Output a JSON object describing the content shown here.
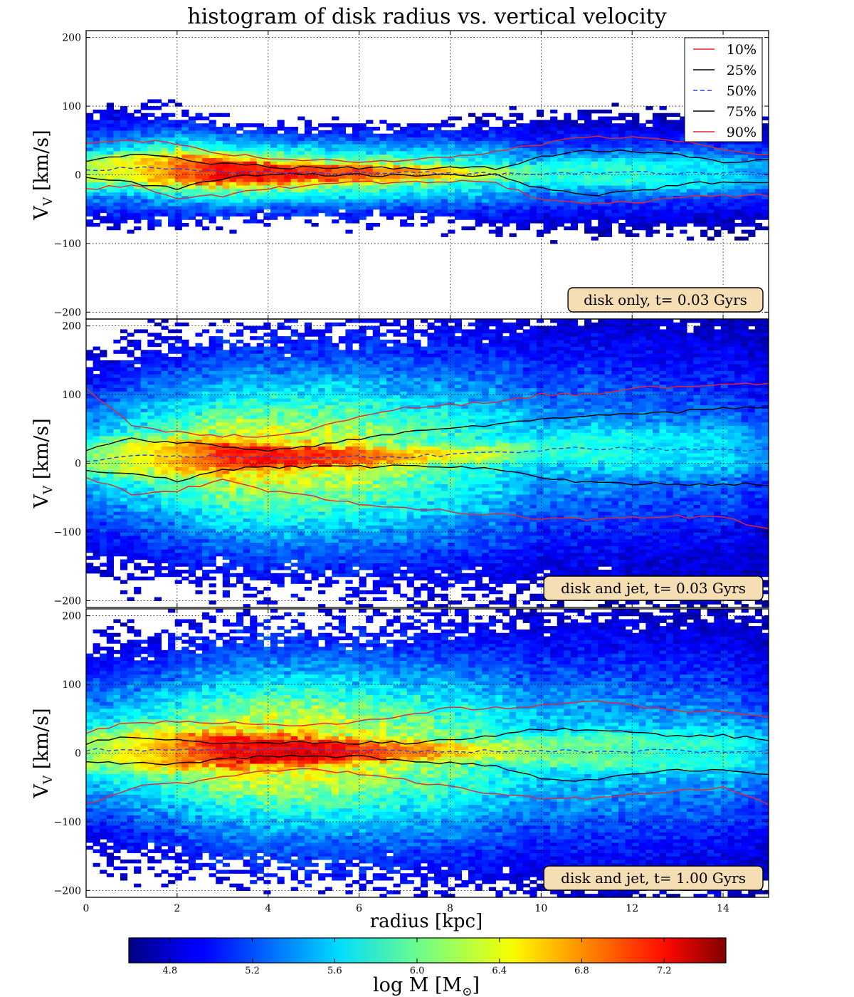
{
  "chart_data": {
    "type": "heatmap",
    "title": "histogram of disk radius vs. vertical velocity",
    "xlabel": "radius [kpc]",
    "ylabel": "V_V [km/s]",
    "ylabel_main": "V",
    "ylabel_sub": "V",
    "ylabel_units": " [km/s]",
    "xlim": [
      0,
      15
    ],
    "ylim": [
      -210,
      210
    ],
    "x_ticks": [
      0,
      2,
      4,
      6,
      8,
      10,
      12,
      14
    ],
    "x_tick_labels": [
      "0",
      "2",
      "4",
      "6",
      "8",
      "10",
      "12",
      "14"
    ],
    "y_ticks": [
      -200,
      -100,
      0,
      100,
      200
    ],
    "y_tick_labels": [
      "−200",
      "−100",
      "0",
      "100",
      "200"
    ],
    "grid": true,
    "legend_placement": "top-right",
    "legend": [
      {
        "label": "10%",
        "color": "#e8262c",
        "style": "solid"
      },
      {
        "label": "25%",
        "color": "#000000",
        "style": "solid"
      },
      {
        "label": "50%",
        "color": "#2b3ff0",
        "style": "dashed"
      },
      {
        "label": "75%",
        "color": "#000000",
        "style": "solid"
      },
      {
        "label": "90%",
        "color": "#e8262c",
        "style": "solid"
      }
    ],
    "colorbar": {
      "label": "log M [M⊙]",
      "label_main": "log M [M",
      "label_sub": "⊙",
      "label_end": "]",
      "range": [
        4.6,
        7.5
      ],
      "ticks": [
        4.8,
        5.2,
        5.6,
        6.0,
        6.4,
        6.8,
        7.2
      ],
      "tick_labels": [
        "4.8",
        "5.2",
        "5.6",
        "6.0",
        "6.4",
        "6.8",
        "7.2"
      ],
      "colormap": "jet"
    },
    "radius_grid": [
      0,
      1,
      2,
      3,
      4,
      5,
      6,
      7,
      8,
      9,
      10,
      11,
      12,
      13,
      14,
      15
    ],
    "panels": [
      {
        "label": "disk only, t= 0.03 Gyrs",
        "has_legend": true,
        "core_sigma": [
          13,
          14,
          15,
          12,
          10,
          8,
          7,
          6,
          5,
          5,
          10,
          13,
          14,
          15,
          16,
          16
        ],
        "wing_sigma": [
          28,
          30,
          30,
          26,
          24,
          24,
          24,
          24,
          26,
          28,
          30,
          30,
          30,
          30,
          30,
          30
        ],
        "peak_logM": [
          6.2,
          6.4,
          6.8,
          7.1,
          7.1,
          7.0,
          6.9,
          6.7,
          6.5,
          6.2,
          5.8,
          5.8,
          5.8,
          5.7,
          5.6,
          5.4
        ],
        "percentiles": [
          {
            "name": "10%",
            "values": [
              -20,
              -15,
              -35,
              -30,
              -20,
              -15,
              -12,
              -10,
              -10,
              -12,
              -35,
              -40,
              -40,
              -35,
              -30,
              -30
            ]
          },
          {
            "name": "25%",
            "values": [
              -5,
              -12,
              -20,
              -5,
              0,
              0,
              0,
              0,
              0,
              0,
              -20,
              -30,
              -25,
              -15,
              -10,
              -10
            ]
          },
          {
            "name": "50%",
            "values": [
              5,
              10,
              8,
              5,
              3,
              3,
              3,
              3,
              2,
              2,
              2,
              3,
              3,
              3,
              3,
              3
            ]
          },
          {
            "name": "75%",
            "values": [
              20,
              30,
              25,
              15,
              12,
              10,
              10,
              10,
              10,
              10,
              25,
              35,
              35,
              30,
              20,
              20
            ]
          },
          {
            "name": "90%",
            "values": [
              45,
              50,
              45,
              30,
              25,
              22,
              20,
              20,
              25,
              35,
              45,
              55,
              55,
              50,
              35,
              30
            ]
          }
        ]
      },
      {
        "label": "disk and jet, t= 0.03 Gyrs",
        "has_legend": false,
        "core_sigma": [
          15,
          16,
          16,
          13,
          10,
          9,
          8,
          7,
          6,
          7,
          12,
          16,
          18,
          20,
          22,
          22
        ],
        "wing_sigma": [
          55,
          60,
          62,
          64,
          65,
          66,
          68,
          70,
          72,
          74,
          76,
          78,
          78,
          78,
          78,
          76
        ],
        "peak_logM": [
          6.0,
          6.3,
          6.6,
          7.0,
          7.1,
          7.0,
          6.9,
          6.6,
          6.4,
          6.2,
          5.8,
          5.8,
          5.7,
          5.6,
          5.6,
          5.3
        ],
        "percentiles": [
          {
            "name": "10%",
            "values": [
              -20,
              -45,
              -40,
              -25,
              -40,
              -50,
              -60,
              -65,
              -70,
              -75,
              -80,
              -82,
              -80,
              -78,
              -80,
              -95
            ]
          },
          {
            "name": "25%",
            "values": [
              -10,
              -15,
              -25,
              -10,
              -5,
              -5,
              -5,
              -5,
              -5,
              -8,
              -20,
              -28,
              -30,
              -30,
              -30,
              -30
            ]
          },
          {
            "name": "50%",
            "values": [
              5,
              10,
              10,
              10,
              10,
              10,
              10,
              10,
              12,
              15,
              20,
              22,
              22,
              20,
              20,
              20
            ]
          },
          {
            "name": "75%",
            "values": [
              20,
              35,
              30,
              25,
              20,
              25,
              35,
              45,
              50,
              55,
              65,
              70,
              70,
              75,
              80,
              80
            ]
          },
          {
            "name": "90%",
            "values": [
              110,
              55,
              45,
              40,
              40,
              50,
              70,
              80,
              85,
              90,
              100,
              100,
              110,
              110,
              115,
              115
            ]
          }
        ]
      },
      {
        "label": "disk and jet, t= 1.00 Gyrs",
        "has_legend": false,
        "core_sigma": [
          16,
          18,
          18,
          15,
          12,
          10,
          9,
          8,
          7,
          8,
          12,
          15,
          17,
          18,
          19,
          20
        ],
        "wing_sigma": [
          55,
          58,
          60,
          62,
          64,
          64,
          66,
          68,
          70,
          72,
          74,
          76,
          76,
          76,
          76,
          74
        ],
        "peak_logM": [
          6.1,
          6.4,
          6.7,
          7.1,
          7.2,
          7.2,
          7.0,
          6.8,
          6.6,
          6.3,
          6.0,
          6.0,
          5.9,
          5.8,
          5.8,
          5.5
        ],
        "percentiles": [
          {
            "name": "10%",
            "values": [
              -75,
              -50,
              -45,
              -35,
              -25,
              -25,
              -30,
              -40,
              -50,
              -60,
              -65,
              -65,
              -60,
              -55,
              -50,
              -75
            ]
          },
          {
            "name": "25%",
            "values": [
              -15,
              -15,
              -15,
              -10,
              -5,
              -5,
              -5,
              -10,
              -15,
              -20,
              -35,
              -40,
              -30,
              -25,
              -25,
              -30
            ]
          },
          {
            "name": "50%",
            "values": [
              5,
              5,
              5,
              5,
              5,
              5,
              3,
              3,
              3,
              3,
              3,
              3,
              3,
              3,
              3,
              3
            ]
          },
          {
            "name": "75%",
            "values": [
              15,
              25,
              20,
              15,
              15,
              15,
              15,
              15,
              20,
              25,
              35,
              35,
              30,
              25,
              25,
              20
            ]
          },
          {
            "name": "90%",
            "values": [
              30,
              45,
              45,
              45,
              40,
              40,
              45,
              55,
              65,
              65,
              70,
              75,
              70,
              60,
              60,
              50
            ]
          }
        ]
      }
    ]
  }
}
